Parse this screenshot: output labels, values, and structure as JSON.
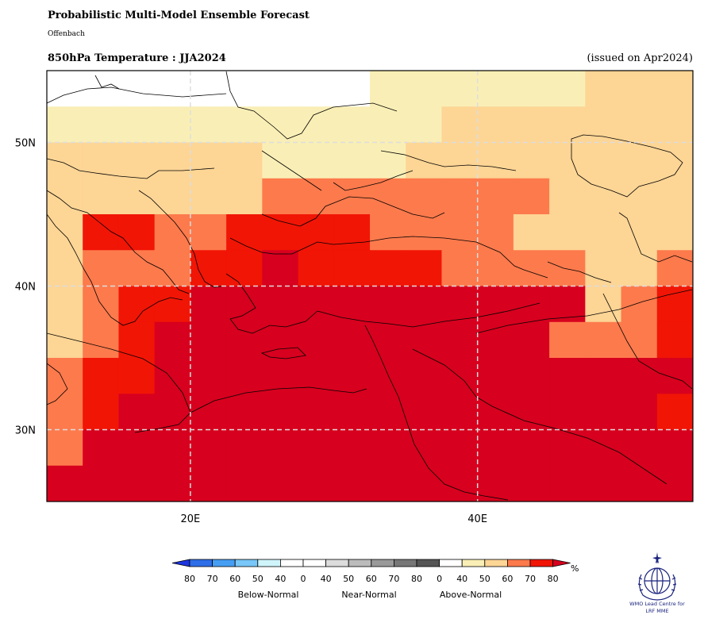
{
  "header": {
    "title": "Probabilistic Multi-Model Ensemble Forecast",
    "subtitle": "Offenbach",
    "variable": "850hPa Temperature : JJA2024",
    "issued": "(issued on Apr2024)"
  },
  "map": {
    "lon_range": [
      10,
      55
    ],
    "lat_range": [
      25,
      55
    ],
    "grid_lons": [
      20,
      40
    ],
    "grid_lats": [
      30,
      40,
      50
    ],
    "lon_labels": [
      "20E",
      "40E"
    ],
    "lat_labels": [
      "30N",
      "40N",
      "50N"
    ],
    "cell_size_deg": 2.5,
    "field": {
      "description": "Above-normal probability category per 2.5° cell, rows north to south from 55N, cols from 10E",
      "categories": [
        "none",
        "40-50",
        "50-60",
        "60-70",
        "70-80",
        ">80"
      ],
      "colors": [
        "#ffffff",
        "#f9efb6",
        "#fdd595",
        "#fd7a4c",
        "#f11506",
        "#d7001e"
      ]
    }
  },
  "legend": {
    "colors": [
      "#1d36e0",
      "#2e6ee8",
      "#469ef2",
      "#78c7f8",
      "#cff5fb",
      "#ffffff",
      "#ffffff",
      "#dcdcdc",
      "#bbbbbb",
      "#999999",
      "#777777",
      "#555555",
      "#ffffff",
      "#f9efb6",
      "#fdd595",
      "#fd7a4c",
      "#f11506",
      "#d7001e"
    ],
    "ticks": [
      "80",
      "70",
      "60",
      "50",
      "40",
      "0",
      "40",
      "50",
      "60",
      "70",
      "80",
      "0",
      "40",
      "50",
      "60",
      "70",
      "80"
    ],
    "unit": "%",
    "groups": [
      "Below-Normal",
      "Near-Normal",
      "Above-Normal"
    ]
  },
  "logo": {
    "line1": "WMO Lead Centre for",
    "line2": "LRF MME"
  }
}
